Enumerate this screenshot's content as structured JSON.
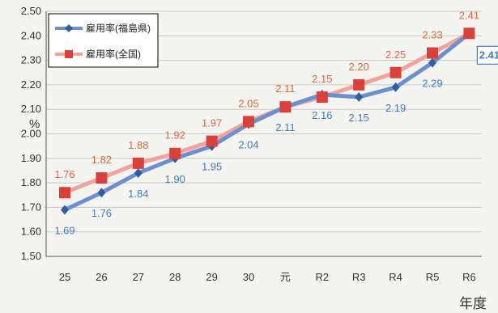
{
  "chart_data": {
    "type": "line",
    "ylabel": "%",
    "xlabel": "年度",
    "ylim": [
      1.5,
      2.5
    ],
    "ytick_step": 0.1,
    "grid": true,
    "legend_position": "top-left",
    "categories": [
      "25",
      "26",
      "27",
      "28",
      "29",
      "30",
      "元",
      "R2",
      "R3",
      "R4",
      "R5",
      "R6"
    ],
    "series": [
      {
        "name": "雇用率(福島県)",
        "values": [
          1.69,
          1.76,
          1.84,
          1.9,
          1.95,
          2.04,
          2.11,
          2.16,
          2.15,
          2.19,
          2.29,
          2.41
        ],
        "labels": [
          "1.69",
          "1.76",
          "1.84",
          "1.90",
          "1.95",
          "2.04",
          "2.11",
          "2.16",
          "2.15",
          "2.19",
          "2.29",
          "2.41"
        ],
        "color": "#6b8fd1",
        "label_color": "#3f7dc4",
        "marker": "diamond"
      },
      {
        "name": "雇用率(全国)",
        "values": [
          1.76,
          1.82,
          1.88,
          1.92,
          1.97,
          2.05,
          2.11,
          2.15,
          2.2,
          2.25,
          2.33,
          2.41
        ],
        "labels": [
          "1.76",
          "1.82",
          "1.88",
          "1.92",
          "1.97",
          "2.05",
          "2.11",
          "2.15",
          "2.20",
          "2.25",
          "2.33",
          "2.41"
        ],
        "color": "#f2a49c",
        "marker_color": "#d9413a",
        "label_color": "#e0693c",
        "marker": "square"
      }
    ]
  }
}
